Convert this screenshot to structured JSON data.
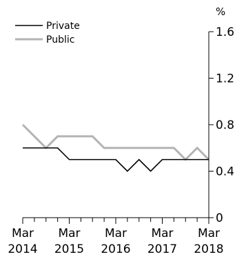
{
  "chart_data": {
    "type": "line",
    "title": "",
    "xlabel": "",
    "ylabel": "",
    "y_unit": "%",
    "ylim": [
      0,
      1.6
    ],
    "yticks": [
      {
        "value": 0,
        "label": "0"
      },
      {
        "value": 0.4,
        "label": "0.4"
      },
      {
        "value": 0.8,
        "label": "0.8"
      },
      {
        "value": 1.2,
        "label": "1.2"
      },
      {
        "value": 1.6,
        "label": "1.6"
      }
    ],
    "x": [
      "Mar 2014",
      "Jun 2014",
      "Sep 2014",
      "Dec 2014",
      "Mar 2015",
      "Jun 2015",
      "Sep 2015",
      "Dec 2015",
      "Mar 2016",
      "Jun 2016",
      "Sep 2016",
      "Dec 2016",
      "Mar 2017",
      "Jun 2017",
      "Sep 2017",
      "Dec 2017",
      "Mar 2018"
    ],
    "xtick_labels": [
      {
        "index": 0,
        "month": "Mar",
        "year": "2014"
      },
      {
        "index": 4,
        "month": "Mar",
        "year": "2015"
      },
      {
        "index": 8,
        "month": "Mar",
        "year": "2016"
      },
      {
        "index": 12,
        "month": "Mar",
        "year": "2017"
      },
      {
        "index": 16,
        "month": "Mar",
        "year": "2018"
      }
    ],
    "series": [
      {
        "name": "Private",
        "color": "#000000",
        "values": [
          0.6,
          0.6,
          0.6,
          0.6,
          0.5,
          0.5,
          0.5,
          0.5,
          0.5,
          0.4,
          0.5,
          0.4,
          0.5,
          0.5,
          0.5,
          0.5,
          0.5
        ]
      },
      {
        "name": "Public",
        "color": "#b3b3b3",
        "values": [
          0.8,
          0.7,
          0.6,
          0.7,
          0.7,
          0.7,
          0.7,
          0.6,
          0.6,
          0.6,
          0.6,
          0.6,
          0.6,
          0.6,
          0.5,
          0.6,
          0.5
        ]
      }
    ],
    "legend_position": "top-left",
    "grid": false
  }
}
